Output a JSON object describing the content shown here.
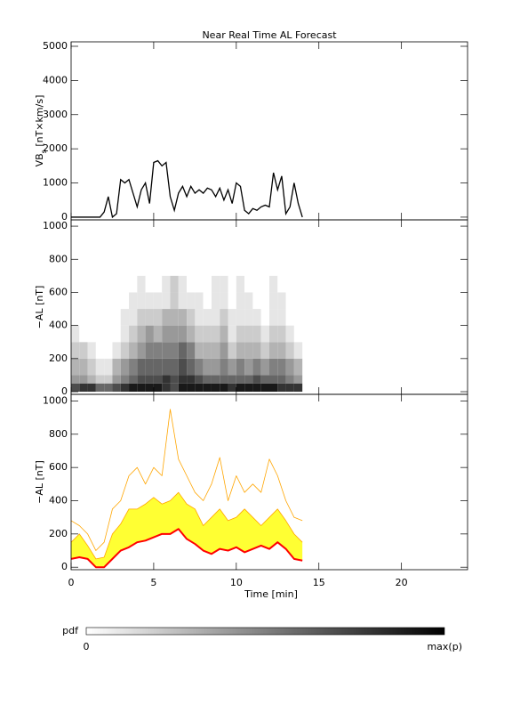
{
  "chart_data": [
    {
      "type": "line",
      "title": "Near Real Time AL Forecast",
      "ylabel": [
        "VB",
        "s",
        " [nT×km/s]"
      ],
      "color": "#000000",
      "x": [
        0,
        0.25,
        0.5,
        0.75,
        1,
        1.25,
        1.5,
        1.75,
        2,
        2.25,
        2.5,
        2.75,
        3,
        3.25,
        3.5,
        3.75,
        4,
        4.25,
        4.5,
        4.75,
        5,
        5.25,
        5.5,
        5.75,
        6,
        6.25,
        6.5,
        6.75,
        7,
        7.25,
        7.5,
        7.75,
        8,
        8.25,
        8.5,
        8.75,
        9,
        9.25,
        9.5,
        9.75,
        10,
        10.25,
        10.5,
        10.75,
        11,
        11.25,
        11.5,
        11.75,
        12,
        12.25,
        12.5,
        12.75,
        13,
        13.25,
        13.5,
        13.75,
        14
      ],
      "values": [
        0,
        0,
        0,
        0,
        0,
        0,
        0,
        0,
        150,
        600,
        0,
        100,
        1100,
        1000,
        1100,
        700,
        300,
        800,
        1000,
        400,
        1600,
        1650,
        1500,
        1600,
        600,
        200,
        700,
        900,
        600,
        900,
        700,
        800,
        700,
        850,
        800,
        600,
        850,
        500,
        800,
        400,
        1000,
        900,
        200,
        100,
        250,
        200,
        300,
        350,
        300,
        1300,
        800,
        1200,
        100,
        300,
        1000,
        400,
        0
      ],
      "xlim": [
        0,
        24
      ],
      "xticks": [
        0,
        5,
        10,
        15,
        20
      ],
      "xtick_labels": false,
      "ylim": [
        -80,
        5130
      ],
      "yticks": [
        0,
        1000,
        2000,
        3000,
        4000,
        5000
      ]
    },
    {
      "type": "heatmap",
      "ylabel": [
        "−AL [nT]"
      ],
      "x_edges": [
        0,
        0.5,
        1,
        1.5,
        2,
        2.5,
        3,
        3.5,
        4,
        4.5,
        5,
        5.5,
        6,
        6.5,
        7,
        7.5,
        8,
        8.5,
        9,
        9.5,
        10,
        10.5,
        11,
        11.5,
        12,
        12.5,
        13,
        13.5,
        14
      ],
      "y_edges": [
        0,
        50,
        100,
        200,
        300,
        400,
        500,
        600,
        700
      ],
      "z": [
        [
          0.7,
          0.8,
          0.8,
          0.6,
          0.6,
          0.7,
          0.8,
          0.9,
          0.9,
          0.9,
          0.9,
          0.8,
          0.7,
          0.9,
          0.9,
          0.9,
          0.9,
          0.9,
          0.9,
          0.8,
          0.9,
          0.9,
          0.9,
          0.9,
          0.9,
          0.8,
          0.8,
          0.8
        ],
        [
          0.4,
          0.4,
          0.3,
          0.2,
          0.2,
          0.4,
          0.5,
          0.6,
          0.7,
          0.7,
          0.7,
          0.8,
          0.7,
          0.8,
          0.8,
          0.7,
          0.6,
          0.6,
          0.6,
          0.6,
          0.6,
          0.6,
          0.7,
          0.6,
          0.6,
          0.6,
          0.5,
          0.4
        ],
        [
          0.3,
          0.3,
          0.2,
          0.1,
          0.1,
          0.3,
          0.4,
          0.5,
          0.6,
          0.6,
          0.6,
          0.6,
          0.6,
          0.7,
          0.6,
          0.5,
          0.4,
          0.4,
          0.5,
          0.4,
          0.5,
          0.4,
          0.5,
          0.4,
          0.5,
          0.5,
          0.4,
          0.3
        ],
        [
          0.2,
          0.2,
          0.1,
          0,
          0,
          0.1,
          0.2,
          0.3,
          0.4,
          0.5,
          0.5,
          0.5,
          0.5,
          0.6,
          0.5,
          0.3,
          0.3,
          0.3,
          0.4,
          0.2,
          0.3,
          0.3,
          0.3,
          0.2,
          0.3,
          0.3,
          0.2,
          0.1
        ],
        [
          0.1,
          0,
          0,
          0,
          0,
          0,
          0.1,
          0.2,
          0.3,
          0.4,
          0.3,
          0.4,
          0.4,
          0.4,
          0.3,
          0.2,
          0.2,
          0.2,
          0.3,
          0.1,
          0.2,
          0.2,
          0.2,
          0.1,
          0.2,
          0.2,
          0.1,
          0
        ],
        [
          0,
          0,
          0,
          0,
          0,
          0,
          0.1,
          0.1,
          0.2,
          0.2,
          0.2,
          0.3,
          0.3,
          0.3,
          0.2,
          0.1,
          0.1,
          0.1,
          0.2,
          0.1,
          0.1,
          0.1,
          0.1,
          0,
          0.1,
          0.1,
          0,
          0
        ],
        [
          0,
          0,
          0,
          0,
          0,
          0,
          0,
          0.1,
          0.1,
          0.1,
          0.1,
          0.1,
          0.2,
          0.1,
          0.1,
          0.1,
          0,
          0.1,
          0.1,
          0,
          0.1,
          0.1,
          0,
          0,
          0.1,
          0.1,
          0,
          0
        ],
        [
          0,
          0,
          0,
          0,
          0,
          0,
          0,
          0,
          0.1,
          0,
          0,
          0.1,
          0.2,
          0.1,
          0,
          0,
          0,
          0.1,
          0.1,
          0,
          0.1,
          0,
          0,
          0,
          0.1,
          0,
          0,
          0
        ]
      ],
      "xlim": [
        0,
        24
      ],
      "xticks": [
        0,
        5,
        10,
        15,
        20
      ],
      "xtick_labels": false,
      "ylim": [
        -16,
        1038
      ],
      "yticks": [
        0,
        200,
        400,
        600,
        800,
        1000
      ]
    },
    {
      "type": "band",
      "ylabel": [
        "−AL [nT]"
      ],
      "xlabel": "Time [min]",
      "x": [
        0,
        0.5,
        1,
        1.5,
        2,
        2.5,
        3,
        3.5,
        4,
        4.5,
        5,
        5.5,
        6,
        6.5,
        7,
        7.5,
        8,
        8.5,
        9,
        9.5,
        10,
        10.5,
        11,
        11.5,
        12,
        12.5,
        13,
        13.5,
        14
      ],
      "fill": {
        "between": [
          0,
          1
        ],
        "color": "#ffff33"
      },
      "series": [
        {
          "color": "#ff0000",
          "width": 2,
          "values": [
            50,
            60,
            50,
            0,
            0,
            50,
            100,
            120,
            150,
            160,
            180,
            200,
            200,
            230,
            170,
            140,
            100,
            80,
            110,
            100,
            120,
            90,
            110,
            130,
            110,
            150,
            110,
            50,
            40
          ]
        },
        {
          "color": "#ffa500",
          "width": 0.8,
          "values": [
            150,
            200,
            130,
            50,
            60,
            200,
            260,
            350,
            350,
            380,
            420,
            380,
            400,
            450,
            380,
            350,
            250,
            300,
            350,
            280,
            300,
            350,
            300,
            250,
            300,
            350,
            280,
            200,
            150
          ]
        },
        {
          "color": "#ffa500",
          "width": 0.8,
          "values": [
            280,
            250,
            200,
            100,
            150,
            350,
            400,
            550,
            600,
            500,
            600,
            550,
            950,
            650,
            550,
            450,
            400,
            500,
            660,
            400,
            550,
            450,
            500,
            450,
            650,
            550,
            400,
            300,
            280
          ]
        }
      ],
      "xlim": [
        0,
        24
      ],
      "xticks": [
        0,
        5,
        10,
        15,
        20
      ],
      "xtick_labels": true,
      "ylim": [
        -15,
        1040
      ],
      "yticks": [
        0,
        200,
        400,
        600,
        800,
        1000
      ]
    }
  ],
  "colorbar": {
    "label": "pdf",
    "min_label": "0",
    "max_label": "max(p)"
  }
}
